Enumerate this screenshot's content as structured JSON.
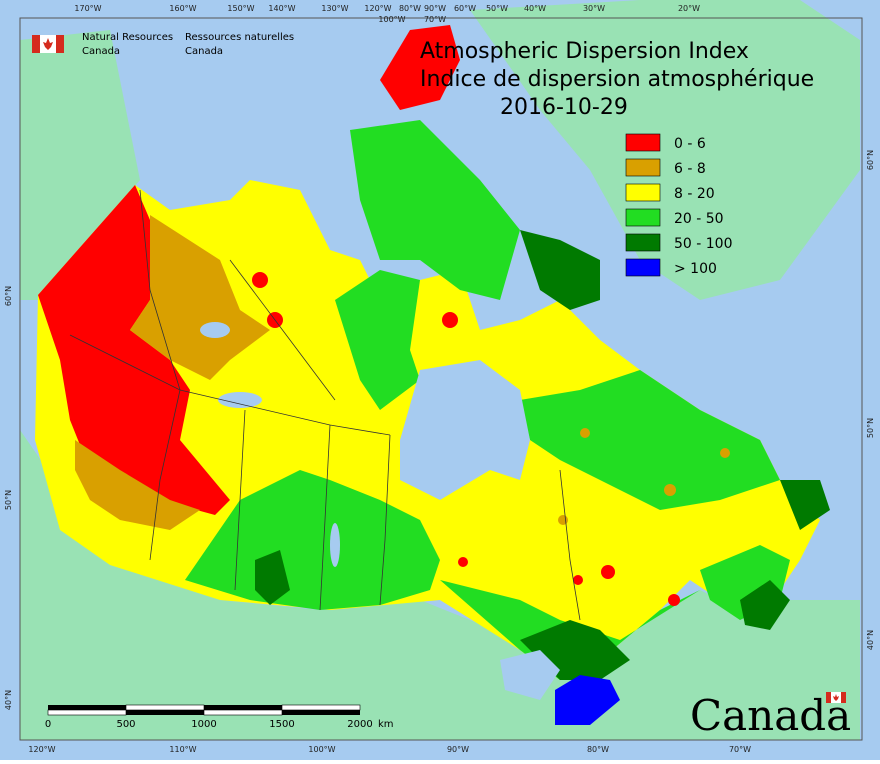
{
  "header": {
    "org_en": [
      "Natural Resources",
      "Canada"
    ],
    "org_fr": [
      "Ressources naturelles",
      "Canada"
    ]
  },
  "title": {
    "line1": "Atmospheric Dispersion Index",
    "line2": "Indice de dispersion atmosphérique",
    "date": "2016-10-29"
  },
  "legend": [
    {
      "label": "0 - 6",
      "color": "#ff0000"
    },
    {
      "label": "6 - 8",
      "color": "#d9a000"
    },
    {
      "label": "8 - 20",
      "color": "#ffff00"
    },
    {
      "label": "20 - 50",
      "color": "#22dd22"
    },
    {
      "label": "50 - 100",
      "color": "#007a00"
    },
    {
      "label": "> 100",
      "color": "#0000ff"
    }
  ],
  "graticule": {
    "top": [
      "170°W",
      "160°W",
      "150°W",
      "140°W",
      "130°W",
      "120°W",
      "100°W",
      "90°W",
      "80°W",
      "70°W",
      "60°W",
      "50°W",
      "40°W",
      "30°W",
      "20°W"
    ],
    "bottom": [
      "120°W",
      "110°W",
      "100°W",
      "90°W",
      "80°W",
      "70°W"
    ],
    "left": [
      "60°N",
      "50°N",
      "40°N"
    ],
    "right": [
      "60°N",
      "50°N",
      "40°N"
    ]
  },
  "scale_bar": {
    "labels": [
      "0",
      "500",
      "1000",
      "1500",
      "2000"
    ],
    "unit": "km"
  },
  "wordmark": "Canada",
  "colors": {
    "ocean": "#a6cbf0",
    "land_other": "#99e2b4",
    "lakes": "#a6cbf0",
    "boundary": "#333333"
  }
}
